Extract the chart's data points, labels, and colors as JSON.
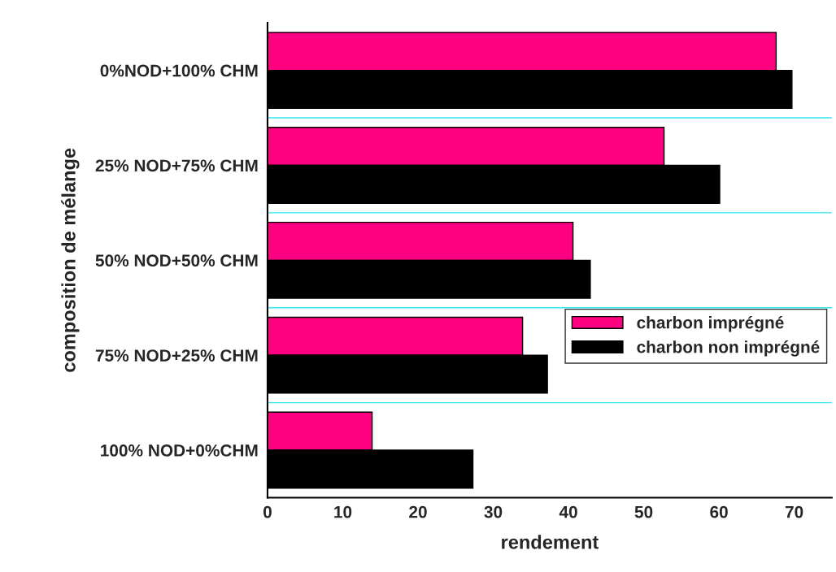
{
  "chart_data": {
    "type": "bar",
    "orientation": "horizontal",
    "xlabel": "rendement",
    "ylabel": "composition de mélange",
    "categories": [
      "0%NOD+100% CHM",
      "25% NOD+75% CHM",
      "50% NOD+50% CHM",
      "75% NOD+25% CHM",
      "100% NOD+0%CHM"
    ],
    "series": [
      {
        "name": "charbon imprégné",
        "color": "#ff0080",
        "values": [
          67.6,
          52.7,
          40.6,
          33.9,
          13.9
        ]
      },
      {
        "name": "charbon non imprégné",
        "color": "#000000",
        "values": [
          69.7,
          60.1,
          42.9,
          37.2,
          27.3
        ]
      }
    ],
    "xlim": [
      0,
      75
    ],
    "xticks": [
      0,
      10,
      20,
      30,
      40,
      50,
      60,
      70
    ],
    "grid": "y",
    "legend": "right"
  }
}
